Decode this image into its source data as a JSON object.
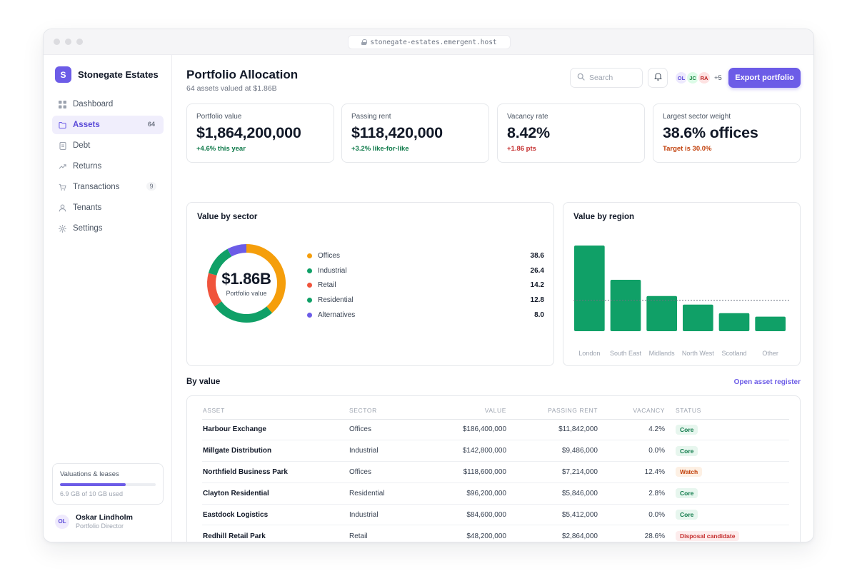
{
  "browser": {
    "url": "stonegate-estates.emergent.host"
  },
  "brand": {
    "initial": "S",
    "name": "Stonegate Estates"
  },
  "sidebar": {
    "items": [
      {
        "label": "Dashboard",
        "icon": "grid-icon",
        "badge": ""
      },
      {
        "label": "Assets",
        "icon": "folder-icon",
        "badge": "64",
        "active": true
      },
      {
        "label": "Debt",
        "icon": "document-icon",
        "badge": ""
      },
      {
        "label": "Returns",
        "icon": "trend-up-icon",
        "badge": ""
      },
      {
        "label": "Transactions",
        "icon": "cart-icon",
        "badge": "9"
      },
      {
        "label": "Tenants",
        "icon": "user-icon",
        "badge": ""
      },
      {
        "label": "Settings",
        "icon": "gear-icon",
        "badge": ""
      }
    ],
    "storage": {
      "title": "Valuations & leases",
      "used_text": "6.9 GB of 10 GB used",
      "fraction": 0.69
    },
    "user": {
      "initials": "OL",
      "name": "Oskar Lindholm",
      "role": "Portfolio Director"
    }
  },
  "header": {
    "title": "Portfolio Allocation",
    "subtitle": "64 assets valued at $1.86B",
    "search_placeholder": "Search",
    "avatars": [
      {
        "initials": "OL",
        "bg": "#ede9fe",
        "fg": "#5b4bd8"
      },
      {
        "initials": "JC",
        "bg": "#dcfce7",
        "fg": "#15803d"
      },
      {
        "initials": "RA",
        "bg": "#fee2e2",
        "fg": "#b91c1c"
      }
    ],
    "avatars_more": "+5",
    "export_label": "Export portfolio"
  },
  "kpis": [
    {
      "label": "Portfolio value",
      "value": "$1,864,200,000",
      "delta": "+4.6% this year",
      "tone": "#0f7a4a"
    },
    {
      "label": "Passing rent",
      "value": "$118,420,000",
      "delta": "+3.2% like-for-like",
      "tone": "#0f7a4a"
    },
    {
      "label": "Vacancy rate",
      "value": "8.42%",
      "delta": "+1.86 pts",
      "tone": "#c53030"
    },
    {
      "label": "Largest sector weight",
      "value": "38.6% offices",
      "delta": "Target is 30.0%",
      "tone": "#c2410c"
    }
  ],
  "sector_card": {
    "title": "Value by sector",
    "center_value": "$1.86B",
    "center_label": "Portfolio value"
  },
  "region_card": {
    "title": "Value by region"
  },
  "chart_data": [
    {
      "type": "pie",
      "categories": [
        "Offices",
        "Industrial",
        "Retail",
        "Residential",
        "Alternatives"
      ],
      "values": [
        38.6,
        26.4,
        14.2,
        12.8,
        8.0
      ],
      "colors": [
        "#f59e0b",
        "#10a067",
        "#f0543c",
        "#10a067",
        "#6c5ce7"
      ]
    },
    {
      "type": "bar",
      "categories": [
        "London",
        "South East",
        "Midlands",
        "North West",
        "Scotland",
        "Other"
      ],
      "values": [
        100,
        60,
        41,
        31,
        21,
        17
      ],
      "reference_line": 36,
      "ylim": [
        0,
        100
      ],
      "grid": false,
      "color": "#10a067"
    }
  ],
  "table_section": {
    "title": "By value",
    "link": "Open asset register"
  },
  "table": {
    "headers": [
      "Asset",
      "Sector",
      "Value",
      "Passing rent",
      "Vacancy",
      "Status"
    ],
    "rows": [
      {
        "asset": "Harbour Exchange",
        "sector": "Offices",
        "value": "$186,400,000",
        "rent": "$11,842,000",
        "vacancy": "4.2%",
        "status": "Core",
        "status_kind": "core"
      },
      {
        "asset": "Millgate Distribution",
        "sector": "Industrial",
        "value": "$142,800,000",
        "rent": "$9,486,000",
        "vacancy": "0.0%",
        "status": "Core",
        "status_kind": "core"
      },
      {
        "asset": "Northfield Business Park",
        "sector": "Offices",
        "value": "$118,600,000",
        "rent": "$7,214,000",
        "vacancy": "12.4%",
        "status": "Watch",
        "status_kind": "watch"
      },
      {
        "asset": "Clayton Residential",
        "sector": "Residential",
        "value": "$96,200,000",
        "rent": "$5,846,000",
        "vacancy": "2.8%",
        "status": "Core",
        "status_kind": "core"
      },
      {
        "asset": "Eastdock Logistics",
        "sector": "Industrial",
        "value": "$84,600,000",
        "rent": "$5,412,000",
        "vacancy": "0.0%",
        "status": "Core",
        "status_kind": "core"
      },
      {
        "asset": "Redhill Retail Park",
        "sector": "Retail",
        "value": "$48,200,000",
        "rent": "$2,864,000",
        "vacancy": "28.6%",
        "status": "Disposal candidate",
        "status_kind": "disposal"
      }
    ]
  }
}
